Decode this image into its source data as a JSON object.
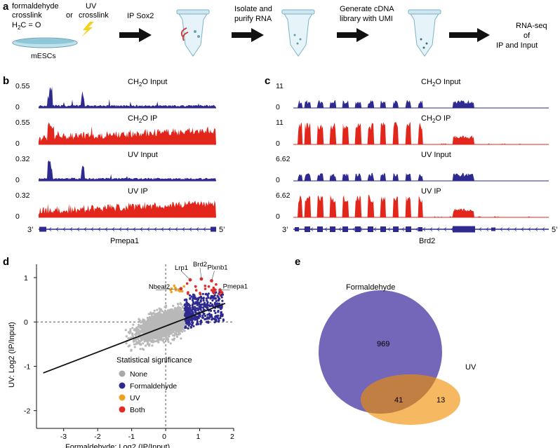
{
  "panel_a": {
    "label": "a",
    "formaldehyde_lines": [
      "formaldehyde",
      "crosslink"
    ],
    "formula_h": "H",
    "formula_sub": "2",
    "formula_rest": "C = O",
    "or_text": "or",
    "uv_lines": [
      "UV",
      "crosslink"
    ],
    "cells_label": "mESCs",
    "steps": [
      {
        "lines": [
          "IP Sox2"
        ]
      },
      {
        "lines": [
          "Isolate and",
          "purify RNA"
        ]
      },
      {
        "lines": [
          "Generate cDNA",
          "library with UMI"
        ]
      },
      {
        "lines": [
          "RNA-seq",
          "of",
          "IP  and Input"
        ]
      }
    ]
  },
  "panel_b": {
    "label": "b",
    "gene": "Pmepa1",
    "three_prime": "3’",
    "five_prime": "5’",
    "tracks": [
      {
        "title_pre": "CH",
        "title_sub": "2",
        "title_post": "O Input",
        "ymax": "0.55",
        "ymin": "0",
        "color": "#2e2a8f"
      },
      {
        "title_pre": "CH",
        "title_sub": "2",
        "title_post": "O IP",
        "ymax": "0.55",
        "ymin": "0",
        "color": "#e2261c"
      },
      {
        "title_pre": "UV Input",
        "title_sub": "",
        "title_post": "",
        "ymax": "0.32",
        "ymin": "0",
        "color": "#2e2a8f"
      },
      {
        "title_pre": "UV IP",
        "title_sub": "",
        "title_post": "",
        "ymax": "0.32",
        "ymin": "0",
        "color": "#e2261c"
      }
    ]
  },
  "panel_c": {
    "label": "c",
    "gene": "Brd2",
    "three_prime": "3’",
    "five_prime": "5’",
    "tracks": [
      {
        "title_pre": "CH",
        "title_sub": "2",
        "title_post": "O Input",
        "ymax": "11",
        "ymin": "0",
        "color": "#2e2a8f"
      },
      {
        "title_pre": "CH",
        "title_sub": "2",
        "title_post": "O IP",
        "ymax": "11",
        "ymin": "0",
        "color": "#e2261c"
      },
      {
        "title_pre": "UV Input",
        "title_sub": "",
        "title_post": "",
        "ymax": "6.62",
        "ymin": "0",
        "color": "#2e2a8f"
      },
      {
        "title_pre": "UV IP",
        "title_sub": "",
        "title_post": "",
        "ymax": "6.62",
        "ymin": "0",
        "color": "#e2261c"
      }
    ]
  },
  "panel_d": {
    "label": "d",
    "legend_title": "Statistical significance",
    "legend": [
      {
        "name": "None",
        "color": "#a9a9a9"
      },
      {
        "name": "Formaldehyde",
        "color": "#2e2a8f"
      },
      {
        "name": "UV",
        "color": "#f0a020"
      },
      {
        "name": "Both",
        "color": "#e02a28"
      }
    ],
    "gene_labels": [
      "Lrp1",
      "Brd2",
      "Plxnb1",
      "Nbeal2",
      "Pmepa1"
    ]
  },
  "chart_data": {
    "type": "scatter",
    "title": "",
    "xlabel": "Formaldehyde: Log2 (IP/Input)",
    "ylabel": "UV: Log2 (IP/Input)",
    "xlim": [
      -3.8,
      2.0
    ],
    "ylim": [
      -2.4,
      1.3
    ],
    "xticks": [
      "-3",
      "-2",
      "-1",
      "0",
      "1",
      "2"
    ],
    "yticks": [
      "-2",
      "-1",
      "0",
      "1"
    ],
    "regression_line": {
      "x": [
        -3.6,
        1.75
      ],
      "y": [
        -1.15,
        0.42
      ]
    },
    "highlighted_points": [
      {
        "name": "Lrp1",
        "x": 0.72,
        "y": 0.95
      },
      {
        "name": "Brd2",
        "x": 1.05,
        "y": 0.97
      },
      {
        "name": "Plxnb1",
        "x": 1.35,
        "y": 0.93
      },
      {
        "name": "Nbeal2",
        "x": 0.45,
        "y": 0.75
      },
      {
        "name": "Pmepa1",
        "x": 1.6,
        "y": 0.72
      }
    ]
  },
  "panel_e": {
    "label": "e",
    "set_a": "Formaldehyde",
    "set_b": "UV",
    "only_a": "969",
    "both": "41",
    "only_b": "13",
    "color_a": "#7466b8",
    "color_b": "#f5ad47"
  }
}
